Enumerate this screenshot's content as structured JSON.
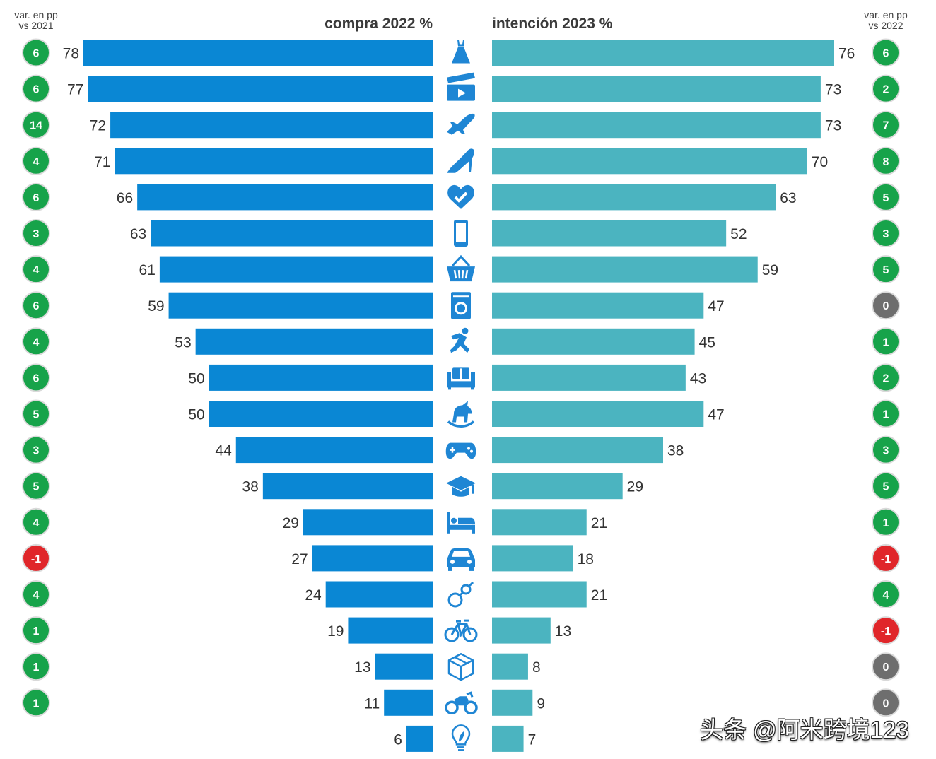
{
  "chart_data": {
    "type": "bar",
    "layout": "butterfly",
    "left_title": "compra 2022 %",
    "right_title": "intención 2023 %",
    "left_var_title": [
      "var. en pp",
      "vs 2021"
    ],
    "right_var_title": [
      "var. en pp",
      "vs 2022"
    ],
    "categories": [
      "dress-icon",
      "film-icon",
      "plane-icon",
      "heel-icon",
      "health-icon",
      "phone-icon",
      "basket-icon",
      "washer-icon",
      "sport-icon",
      "sofa-icon",
      "toy-icon",
      "gamepad-icon",
      "education-icon",
      "bed-icon",
      "car-icon",
      "baby-icon",
      "bicycle-icon",
      "package-icon",
      "motorbike-icon",
      "bulb-icon"
    ],
    "series": [
      {
        "name": "compra 2022 %",
        "values": [
          78,
          77,
          72,
          71,
          66,
          63,
          61,
          59,
          53,
          50,
          50,
          44,
          38,
          29,
          27,
          24,
          19,
          13,
          11,
          6
        ]
      },
      {
        "name": "intención 2023 %",
        "values": [
          76,
          73,
          73,
          70,
          63,
          52,
          59,
          47,
          45,
          43,
          47,
          38,
          29,
          21,
          18,
          21,
          13,
          8,
          9,
          7
        ]
      }
    ],
    "var_left": [
      6,
      6,
      14,
      4,
      6,
      3,
      4,
      6,
      4,
      6,
      5,
      3,
      5,
      4,
      -1,
      4,
      1,
      1,
      1,
      null
    ],
    "var_right": [
      6,
      2,
      7,
      8,
      5,
      3,
      5,
      0,
      1,
      2,
      1,
      3,
      5,
      1,
      -1,
      4,
      -1,
      0,
      0,
      null
    ],
    "xlim": [
      0,
      80
    ]
  },
  "colors": {
    "left_bar": "#0a87d4",
    "right_bar": "#4bb4c0",
    "icon": "#1f86d4",
    "positive": "#17a34a",
    "negative": "#e0262a",
    "zero": "#6e6e6e"
  },
  "watermark": "头条 @阿米跨境123"
}
